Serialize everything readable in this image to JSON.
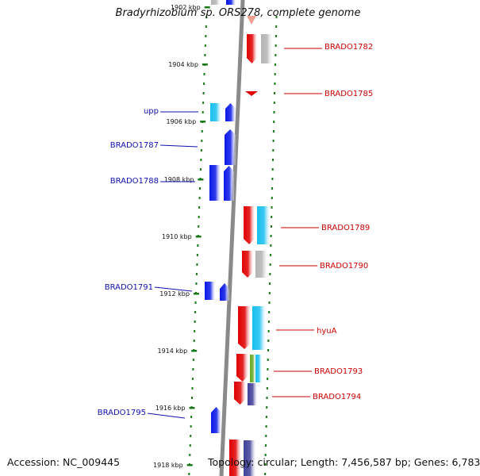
{
  "title": "Bradyrhizobium sp. ORS278, complete genome",
  "accession_text": "Accession: NC_009445",
  "summary_text": "Topology: circular; Length: 7,456,587 bp; Genes: 6,783",
  "colors": {
    "backbone": "#8a8a8a",
    "tick": "#1a7a1a",
    "blue_label": "#1010b0",
    "red_label": "#cc0000",
    "gene_red": "#e00000",
    "gene_blue": "#0a18e8",
    "gene_cyan": "#18bff0",
    "gene_gray": "#b4b4b4",
    "gene_green": "#66aa22",
    "gene_purple": "#404098",
    "gene_salmon": "#f0a090"
  },
  "scale_labels": [
    "1902 kbp",
    "1904 kbp",
    "1906 kbp",
    "1908 kbp",
    "1910 kbp",
    "1912 kbp",
    "1914 kbp",
    "1916 kbp",
    "1918 kbp"
  ],
  "left_labels": [
    "upp",
    "BRADO1787",
    "BRADO1788",
    "BRADO1791",
    "BRADO1795"
  ],
  "right_labels": [
    "BRADO1782",
    "BRADO1785",
    "BRADO1789",
    "BRADO1790",
    "hyuA",
    "BRADO1793",
    "BRADO1794"
  ]
}
